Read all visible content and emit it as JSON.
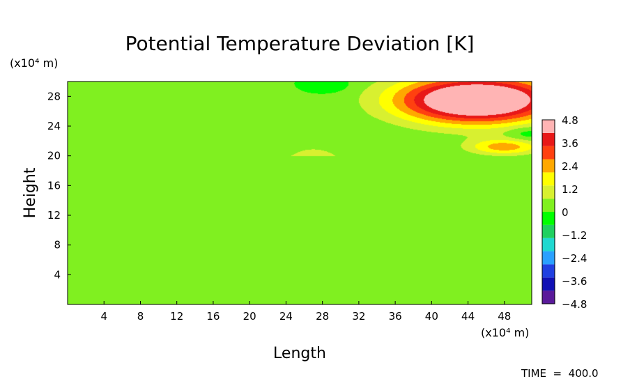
{
  "chart_data": {
    "type": "heatmap",
    "title": "Potential Temperature Deviation [K]",
    "xlabel": "Length",
    "ylabel": "Height",
    "x_unit": "(x10⁴ m)",
    "y_unit": "(x10⁴ m)",
    "xlim": [
      0,
      51
    ],
    "ylim": [
      0,
      30
    ],
    "x_ticks": [
      "4",
      "8",
      "12",
      "16",
      "20",
      "24",
      "28",
      "32",
      "36",
      "40",
      "44",
      "48"
    ],
    "y_ticks": [
      "4",
      "8",
      "12",
      "16",
      "20",
      "24",
      "28"
    ],
    "colorbar": {
      "min": -4.8,
      "max": 4.8,
      "tick_labels": [
        "4.8",
        "3.6",
        "2.4",
        "1.2",
        "0",
        "−1.2",
        "−2.4",
        "−3.6",
        "−4.8"
      ],
      "colors": [
        "#5a1a9a",
        "#1010b4",
        "#2040e0",
        "#2aa0ff",
        "#20d8d0",
        "#20d060",
        "#00ff00",
        "#80f020",
        "#d8f030",
        "#ffff00",
        "#ffa800",
        "#ff4010",
        "#e81818",
        "#ffb4b4"
      ]
    },
    "field": {
      "background_value": 0.0,
      "lower_region_value": 0.05,
      "boundary_height": 20,
      "warm_anomaly": {
        "x_center": 45,
        "y_center": 27.5,
        "peak_value": 4.8,
        "x_extent": [
          32,
          51
        ],
        "y_extent": [
          20,
          30
        ]
      },
      "tail_anomaly": {
        "x_center": 48,
        "y_center": 21.2,
        "peak_value": 2.4
      },
      "weak_plume": {
        "x_range": [
          20,
          34
        ],
        "y_range": [
          20,
          26
        ],
        "value": 0.4
      },
      "cool_spots": [
        {
          "x": 29,
          "y": 29.5,
          "value": -0.6
        },
        {
          "x": 50.5,
          "y": 23,
          "value": -0.8
        }
      ],
      "edge_plume": {
        "x_range": [
          0,
          5
        ],
        "y_range": [
          20,
          25
        ],
        "value": 0.3
      }
    },
    "annotation": "TIME  =  400.0"
  }
}
